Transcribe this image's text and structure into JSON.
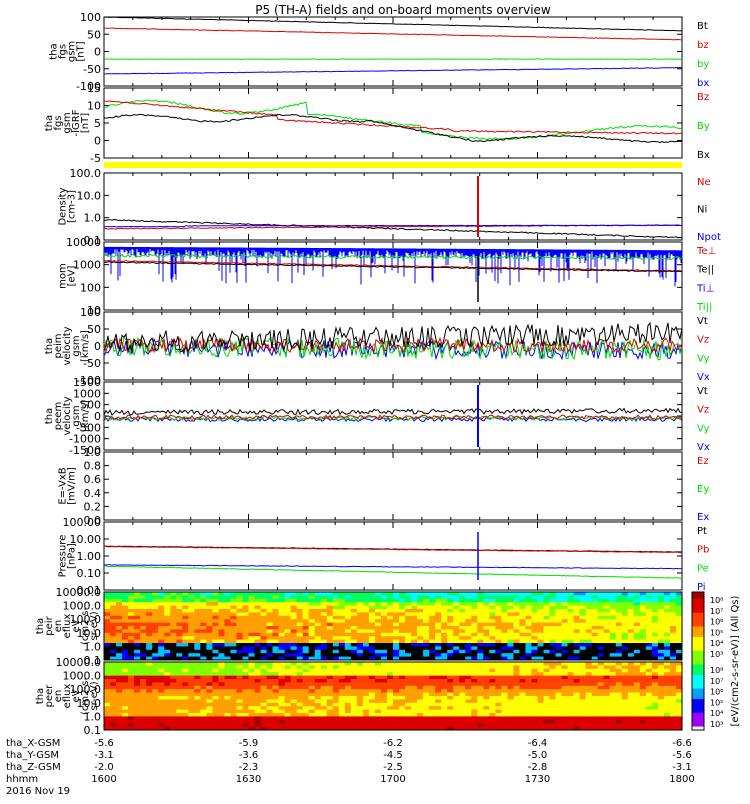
{
  "title": "P5 (TH-A) fields and on-board moments overview",
  "colors": {
    "black": "#000000",
    "red": "#dd0000",
    "green": "#00dd00",
    "blue": "#0000ff",
    "yellow": "#ffff00"
  },
  "chart_data": [
    {
      "type": "line",
      "ylabel": [
        "tha",
        "fgs",
        "gsm",
        "[nT]"
      ],
      "yticks": [
        "100",
        "50",
        "0",
        "-50",
        "-100"
      ],
      "ylim": [
        -100,
        100
      ],
      "legend": [
        {
          "label": "Bt",
          "color": "#000000"
        },
        {
          "label": "bz",
          "color": "#dd0000"
        },
        {
          "label": "by",
          "color": "#00dd00"
        },
        {
          "label": "bx",
          "color": "#0000ff"
        }
      ]
    },
    {
      "type": "line",
      "ylabel": [
        "tha",
        "fgs",
        "gsm",
        "-IGRF",
        "[nT]"
      ],
      "yticks": [
        "15",
        "10",
        "5",
        "0",
        "-5"
      ],
      "ylim": [
        -7,
        15
      ],
      "legend": [
        {
          "label": "Bz",
          "color": "#dd0000"
        },
        {
          "label": "By",
          "color": "#00dd00"
        },
        {
          "label": "Bx",
          "color": "#000000"
        }
      ]
    },
    {
      "type": "line",
      "ylabel": [
        "Density",
        "[cm-3]"
      ],
      "yticks": [
        "100.0",
        "10.0",
        "1.0",
        "0.1"
      ],
      "ylim": [
        0.1,
        300
      ],
      "scale": "log",
      "legend": [
        {
          "label": "Ne",
          "color": "#dd0000"
        },
        {
          "label": "Ni",
          "color": "#000000"
        },
        {
          "label": "Npot",
          "color": "#0000ff"
        }
      ]
    },
    {
      "type": "line",
      "ylabel": [
        "mom",
        "[eV]"
      ],
      "yticks": [
        "10000",
        "1000",
        "100",
        "10"
      ],
      "ylim": [
        10,
        10000
      ],
      "scale": "log",
      "legend": [
        {
          "label": "Te⊥",
          "color": "#dd0000"
        },
        {
          "label": "Te||",
          "color": "#000000"
        },
        {
          "label": "Ti⊥",
          "color": "#0000ff"
        },
        {
          "label": "Ti||",
          "color": "#00dd00"
        }
      ]
    },
    {
      "type": "line",
      "ylabel": [
        "tha",
        "peim",
        "velocity",
        "gsm",
        "[km/s]"
      ],
      "yticks": [
        "100",
        "50",
        "0",
        "-50",
        "-100"
      ],
      "ylim": [
        -100,
        100
      ],
      "legend": [
        {
          "label": "Vt",
          "color": "#000000"
        },
        {
          "label": "Vz",
          "color": "#dd0000"
        },
        {
          "label": "Vy",
          "color": "#00dd00"
        },
        {
          "label": "Vx",
          "color": "#0000ff"
        }
      ]
    },
    {
      "type": "line",
      "ylabel": [
        "tha",
        "peem",
        "velocity",
        "gsm",
        "[km/s]"
      ],
      "yticks": [
        "1500",
        "1000",
        "500",
        "0",
        "-500",
        "-1000",
        "-1500"
      ],
      "ylim": [
        -1500,
        1500
      ],
      "legend": [
        {
          "label": "Vt",
          "color": "#000000"
        },
        {
          "label": "Vz",
          "color": "#dd0000"
        },
        {
          "label": "Vy",
          "color": "#00dd00"
        },
        {
          "label": "Vx",
          "color": "#0000ff"
        }
      ]
    },
    {
      "type": "line",
      "ylabel": [
        "E=-VxB",
        "[mV/m]"
      ],
      "yticks": [
        "1.0",
        "0.8",
        "0.6",
        "0.4",
        "0.2",
        "0.0"
      ],
      "ylim": [
        0,
        1
      ],
      "legend": [
        {
          "label": "Ez",
          "color": "#dd0000"
        },
        {
          "label": "Ey",
          "color": "#00dd00"
        },
        {
          "label": "Ex",
          "color": "#0000ff"
        }
      ]
    },
    {
      "type": "line",
      "ylabel": [
        "Pressure",
        "[nPa]"
      ],
      "yticks": [
        "100.00",
        "10.00",
        "1.00",
        "0.10",
        "0.01"
      ],
      "ylim": [
        0.01,
        100
      ],
      "scale": "log",
      "legend": [
        {
          "label": "Pt",
          "color": "#000000"
        },
        {
          "label": "Pb",
          "color": "#dd0000"
        },
        {
          "label": "Pe",
          "color": "#00dd00"
        },
        {
          "label": "Pi",
          "color": "#0000ff"
        }
      ]
    },
    {
      "type": "heatmap",
      "ylabel": [
        "tha",
        "peir",
        "en",
        "eflux",
        "eV",
        "(cm2-s-",
        "sr-eV)"
      ],
      "yticks": [
        "10000.0",
        "1000.0",
        "100.0",
        "10.0",
        "1.0",
        "0.1"
      ],
      "ylim": [
        0.1,
        10000
      ],
      "scale": "log"
    },
    {
      "type": "heatmap",
      "ylabel": [
        "tha",
        "peer",
        "en",
        "eflux",
        "eV",
        "(cm2-s-",
        "sr-eV)"
      ],
      "yticks": [
        "10000.0",
        "1000.0",
        "100.0",
        "10.0",
        "1.0",
        "0.1"
      ],
      "ylim": [
        0.1,
        10000
      ],
      "scale": "log"
    }
  ],
  "colorbar": {
    "label": "[eV/(cm2-s-sr-eV)] (All Qs)",
    "ticks": [
      "10⁸",
      "10⁷",
      "10⁶",
      "10⁵",
      "10⁴",
      "10³"
    ]
  },
  "xaxis": {
    "row_labels": [
      "tha_X-GSM",
      "tha_Y-GSM",
      "tha_Z-GSM",
      "hhmm",
      "2016 Nov 19"
    ],
    "x": [
      "1600",
      "1630",
      "1700",
      "1730",
      "1800"
    ],
    "rows": [
      [
        "-5.6",
        "-5.9",
        "-6.2",
        "-6.4",
        "-6.6"
      ],
      [
        "-3.1",
        "-3.6",
        "-4.5",
        "-5.0",
        "-5.6"
      ],
      [
        "-2.0",
        "-2.3",
        "-2.5",
        "-2.8",
        "-3.1"
      ],
      [
        "1600",
        "1630",
        "1700",
        "1730",
        "1800"
      ]
    ]
  }
}
